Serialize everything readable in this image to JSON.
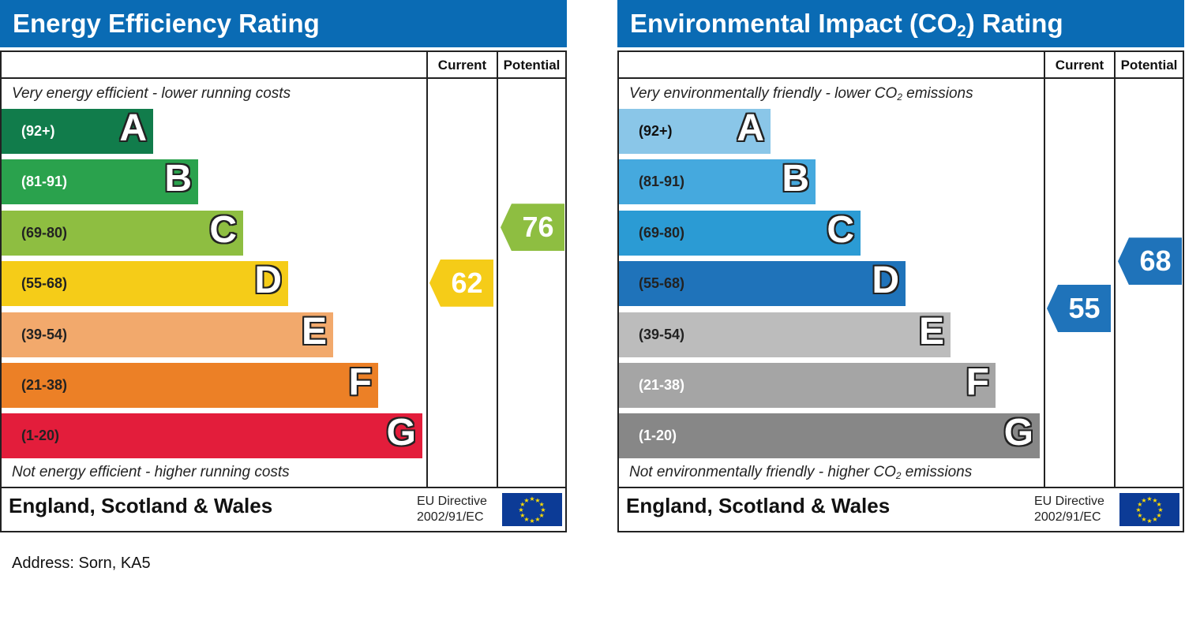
{
  "colors": {
    "title_bar": "#0a6bb4",
    "energy_bands": [
      "#117c4b",
      "#2aa24d",
      "#8ebe41",
      "#f5cc18",
      "#f2a96c",
      "#ec8026",
      "#e31d3b"
    ],
    "co2_bands": [
      "#8ac6e8",
      "#45a9de",
      "#2b9bd4",
      "#1f73ba",
      "#bcbcbc",
      "#a5a5a5",
      "#878787"
    ],
    "eu_flag": "#0c3b96",
    "eu_star": "#ffdd00"
  },
  "energy": {
    "title": "Energy Efficiency Rating",
    "col_current": "Current",
    "col_potential": "Potential",
    "top_caption": "Very energy efficient - lower running costs",
    "bottom_caption": "Not energy efficient - higher running costs",
    "bands": [
      {
        "range": "(92+)",
        "letter": "A"
      },
      {
        "range": "(81-91)",
        "letter": "B"
      },
      {
        "range": "(69-80)",
        "letter": "C"
      },
      {
        "range": "(55-68)",
        "letter": "D"
      },
      {
        "range": "(39-54)",
        "letter": "E"
      },
      {
        "range": "(21-38)",
        "letter": "F"
      },
      {
        "range": "(1-20)",
        "letter": "G"
      }
    ],
    "current": "62",
    "potential": "76",
    "country": "England, Scotland & Wales",
    "directive_line1": "EU Directive",
    "directive_line2": "2002/91/EC"
  },
  "co2": {
    "title_prefix": "Environmental Impact (CO",
    "title_sub": "2",
    "title_suffix": ") Rating",
    "col_current": "Current",
    "col_potential": "Potential",
    "top_caption_prefix": "Very environmentally friendly - lower CO",
    "top_caption_sub": "2",
    "top_caption_suffix": " emissions",
    "bottom_caption_prefix": "Not environmentally friendly - higher CO",
    "bottom_caption_sub": "2",
    "bottom_caption_suffix": " emissions",
    "bands": [
      {
        "range": "(92+)",
        "letter": "A"
      },
      {
        "range": "(81-91)",
        "letter": "B"
      },
      {
        "range": "(69-80)",
        "letter": "C"
      },
      {
        "range": "(55-68)",
        "letter": "D"
      },
      {
        "range": "(39-54)",
        "letter": "E"
      },
      {
        "range": "(21-38)",
        "letter": "F"
      },
      {
        "range": "(1-20)",
        "letter": "G"
      }
    ],
    "current": "55",
    "potential": "68",
    "country": "England, Scotland & Wales",
    "directive_line1": "EU Directive",
    "directive_line2": "2002/91/EC"
  },
  "address": "Address: Sorn, KA5",
  "chart_data": [
    {
      "type": "bar",
      "title": "Energy Efficiency Rating",
      "categories": [
        "A",
        "B",
        "C",
        "D",
        "E",
        "F",
        "G"
      ],
      "ranges": [
        "(92+)",
        "(81-91)",
        "(69-80)",
        "(55-68)",
        "(39-54)",
        "(21-38)",
        "(1-20)"
      ],
      "current": 62,
      "potential": 76,
      "current_band": "D",
      "potential_band": "C"
    },
    {
      "type": "bar",
      "title": "Environmental Impact (CO2) Rating",
      "categories": [
        "A",
        "B",
        "C",
        "D",
        "E",
        "F",
        "G"
      ],
      "ranges": [
        "(92+)",
        "(81-91)",
        "(69-80)",
        "(55-68)",
        "(39-54)",
        "(21-38)",
        "(1-20)"
      ],
      "current": 55,
      "potential": 68,
      "current_band": "D",
      "potential_band": "D"
    }
  ]
}
